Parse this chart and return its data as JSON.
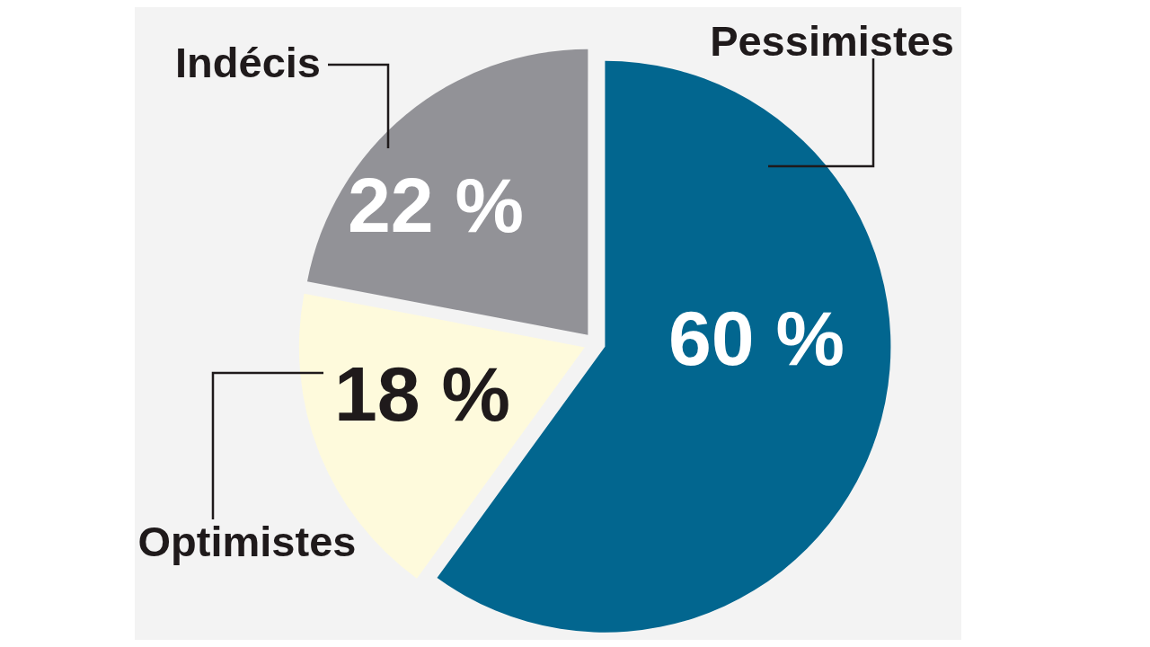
{
  "chart_data": {
    "type": "pie",
    "categories": [
      "Pessimistes",
      "Optimistes",
      "Indécis"
    ],
    "values": [
      60,
      18,
      22
    ],
    "colors": [
      "#02668f",
      "#fefadc",
      "#929297"
    ],
    "value_labels": [
      "60 %",
      "18 %",
      "22 %"
    ]
  }
}
